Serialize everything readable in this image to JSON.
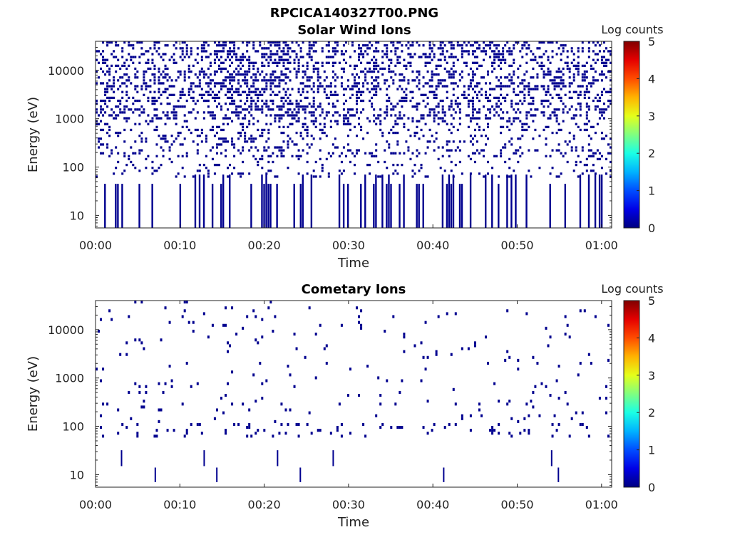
{
  "figure": {
    "filename": "RPCICA140327T00.PNG",
    "colors": {
      "background": "#ffffff",
      "axis": "#222222",
      "count_pixel": "#00008f"
    }
  },
  "chart_data": [
    {
      "type": "heatmap",
      "title": "Solar Wind Ions",
      "xlabel": "Time",
      "ylabel": "Energy (eV)",
      "x_tick_labels": [
        "00:00",
        "00:10",
        "00:20",
        "00:30",
        "00:40",
        "00:50",
        "01:00"
      ],
      "x_tick_minutes": [
        0,
        10,
        20,
        30,
        40,
        50,
        60
      ],
      "xlim_minutes": [
        0,
        61.2
      ],
      "y_scale": "log",
      "y_tick_labels": [
        "10",
        "100",
        "1000",
        "10000"
      ],
      "y_tick_values": [
        10,
        100,
        1000,
        10000
      ],
      "ylim": [
        5.5,
        40000
      ],
      "colorbar": {
        "label": "Log counts",
        "ticks": [
          "0",
          "1",
          "2",
          "3",
          "4",
          "5"
        ],
        "range": [
          0,
          5
        ],
        "colormap": "jet"
      },
      "dominant_value": 0,
      "density": "dense sparse scatter of single-count (log counts = 0) pixels across all energies; densest above ~1000 eV, notably around 00:15–00:25; vertical stripes below 100 eV"
    },
    {
      "type": "heatmap",
      "title": "Cometary Ions",
      "xlabel": "Time",
      "ylabel": "Energy (eV)",
      "x_tick_labels": [
        "00:00",
        "00:10",
        "00:20",
        "00:30",
        "00:40",
        "00:50",
        "01:00"
      ],
      "x_tick_minutes": [
        0,
        10,
        20,
        30,
        40,
        50,
        60
      ],
      "xlim_minutes": [
        0,
        61.2
      ],
      "y_scale": "log",
      "y_tick_labels": [
        "10",
        "100",
        "1000",
        "10000"
      ],
      "y_tick_values": [
        10,
        100,
        1000,
        10000
      ],
      "ylim": [
        5.5,
        40000
      ],
      "colorbar": {
        "label": "Log counts",
        "ticks": [
          "0",
          "1",
          "2",
          "3",
          "4",
          "5"
        ],
        "range": [
          0,
          5
        ],
        "colormap": "jet"
      },
      "dominant_value": 0,
      "density": "very sparse single-count (log counts = 0) pixels; a recurring band near 70–100 eV, scattered points up to ~25000 eV, a few isolated bins near 10–20 eV",
      "notable_low_energy_times_minutes": [
        3,
        7,
        12.8,
        14.3,
        21.5,
        24.2,
        28.1,
        41.2,
        54,
        54.8
      ]
    }
  ]
}
